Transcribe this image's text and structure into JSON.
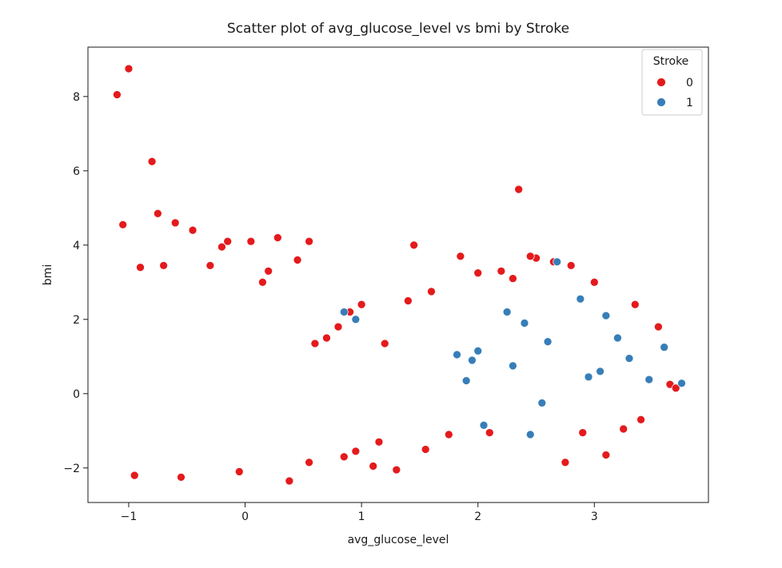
{
  "chart_data": {
    "type": "scatter",
    "title": "Scatter plot of avg_glucose_level vs bmi by Stroke",
    "xlabel": "avg_glucose_level",
    "ylabel": "bmi",
    "xlim": [
      -1.35,
      3.98
    ],
    "ylim": [
      -2.93,
      9.33
    ],
    "x_ticks": [
      -1,
      0,
      1,
      2,
      3
    ],
    "x_tick_labels": [
      "−1",
      "0",
      "1",
      "2",
      "3"
    ],
    "y_ticks": [
      -2,
      0,
      2,
      4,
      6,
      8
    ],
    "y_tick_labels": [
      "−2",
      "0",
      "2",
      "4",
      "6",
      "8"
    ],
    "grid": false,
    "legend": {
      "title": "Stroke",
      "placement": "top-right",
      "entries": [
        {
          "label": "0",
          "color": "#e41a1c"
        },
        {
          "label": "1",
          "color": "#377eb8"
        }
      ]
    },
    "series": [
      {
        "name": "0",
        "color": "#e41a1c",
        "x": [
          -1.0,
          -1.1,
          -0.8,
          -0.75,
          -1.05,
          -0.6,
          -0.45,
          2.35,
          -0.15,
          0.05,
          0.28,
          0.55,
          1.45,
          0.45,
          -0.9,
          -0.7,
          -0.3,
          -0.2,
          0.15,
          0.2,
          1.85,
          2.2,
          2.5,
          2.8,
          3.0,
          3.35,
          3.55,
          3.65,
          3.7,
          2.65,
          2.45,
          2.3,
          2.0,
          1.6,
          1.4,
          1.2,
          1.0,
          0.9,
          0.8,
          0.7,
          0.6,
          0.38,
          -0.95,
          -0.55,
          -0.05,
          1.1,
          0.55,
          2.75,
          3.1,
          3.25,
          2.1,
          1.75,
          1.55,
          0.95,
          1.3,
          2.9,
          3.4,
          0.85,
          1.15
        ],
        "y": [
          8.75,
          8.05,
          6.25,
          4.85,
          4.55,
          4.6,
          4.4,
          5.5,
          4.1,
          4.1,
          4.2,
          4.1,
          4.0,
          3.6,
          3.4,
          3.45,
          3.45,
          3.95,
          3.0,
          3.3,
          3.7,
          3.3,
          3.65,
          3.45,
          3.0,
          2.4,
          1.8,
          0.25,
          0.15,
          3.55,
          3.7,
          3.1,
          3.25,
          2.75,
          2.5,
          1.35,
          2.4,
          2.2,
          1.8,
          1.5,
          1.35,
          -2.35,
          -2.2,
          -2.25,
          -2.1,
          -1.95,
          -1.85,
          -1.85,
          -1.65,
          -0.95,
          -1.05,
          -1.1,
          -1.5,
          -1.55,
          -2.05,
          -1.05,
          -0.7,
          -1.7,
          -1.3
        ]
      },
      {
        "name": "1",
        "color": "#377eb8",
        "x": [
          2.68,
          2.88,
          3.1,
          3.2,
          3.47,
          3.6,
          3.75,
          2.25,
          2.4,
          2.6,
          2.3,
          2.45,
          0.85,
          0.95,
          2.0,
          1.82,
          1.9,
          2.95,
          3.3,
          2.05,
          2.55,
          1.95,
          3.05
        ],
        "y": [
          3.55,
          2.55,
          2.1,
          1.5,
          0.38,
          1.25,
          0.28,
          2.2,
          1.9,
          1.4,
          0.75,
          -1.1,
          2.2,
          2.0,
          1.15,
          1.05,
          0.35,
          0.45,
          0.95,
          -0.85,
          -0.25,
          0.9,
          0.6
        ]
      }
    ]
  }
}
